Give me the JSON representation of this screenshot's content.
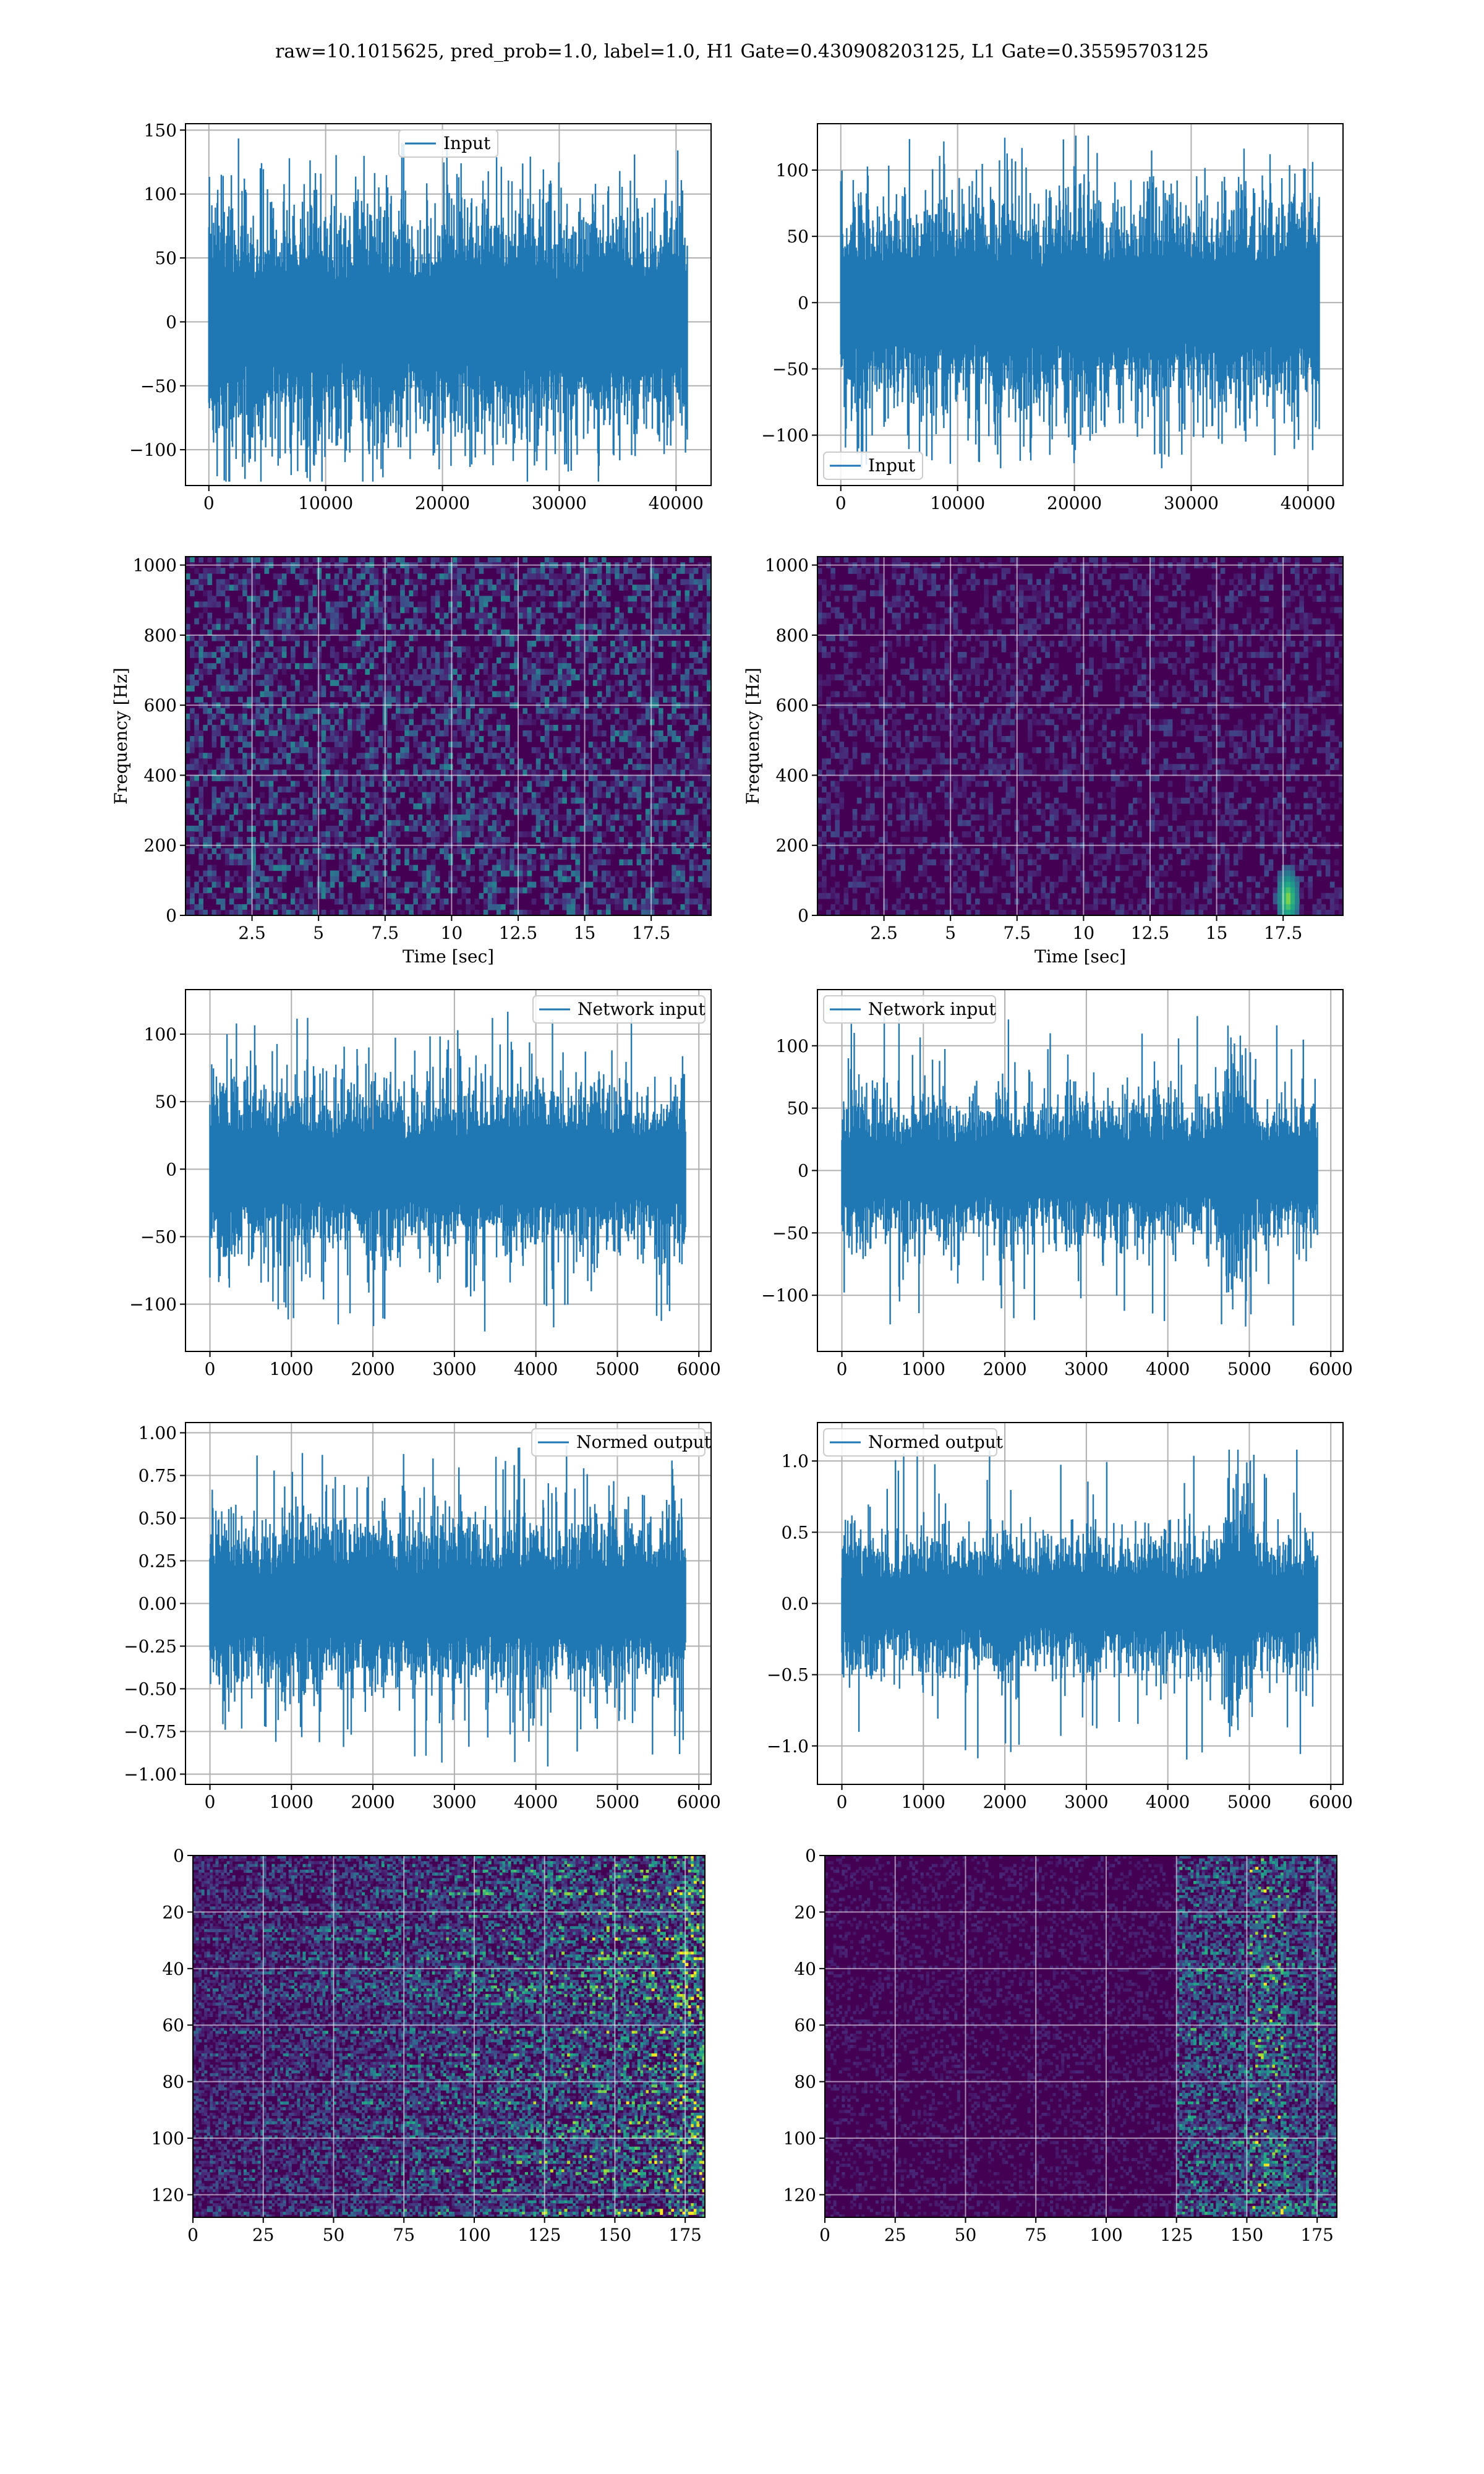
{
  "figure": {
    "title": "raw=10.1015625, pred_prob=1.0, label=1.0, H1 Gate=0.430908203125, L1 Gate=0.35595703125"
  },
  "colors": {
    "line": "#1f77b4",
    "grid": "#b0b0b0",
    "viridis_dark": "#440154",
    "viridis_mid": "#21918c",
    "viridis_light": "#fde725"
  },
  "chart_data": [
    {
      "id": "h1-input",
      "type": "line",
      "series": [
        {
          "name": "Input",
          "stats": {
            "n": 40960,
            "min": -125,
            "max": 146,
            "typical_range": [
              -80,
              80
            ]
          }
        }
      ],
      "xlim": [
        -2000,
        43000
      ],
      "ylim": [
        -128,
        155
      ],
      "xticks": [
        0,
        10000,
        20000,
        30000,
        40000
      ],
      "yticks": [
        -100,
        -50,
        0,
        50,
        100,
        150
      ],
      "legend": "upper center",
      "grid": true
    },
    {
      "id": "l1-input",
      "type": "line",
      "series": [
        {
          "name": "Input",
          "stats": {
            "n": 40960,
            "min": -125,
            "max": 126,
            "typical_range": [
              -70,
              70
            ]
          }
        }
      ],
      "xlim": [
        -2000,
        43000
      ],
      "ylim": [
        -138,
        135
      ],
      "xticks": [
        0,
        10000,
        20000,
        30000,
        40000
      ],
      "yticks": [
        -100,
        -50,
        0,
        50,
        100
      ],
      "legend": "lower left",
      "grid": true
    },
    {
      "id": "h1-spectrogram",
      "type": "heatmap",
      "xlabel": "Time [sec]",
      "ylabel": "Frequency [Hz]",
      "xlim": [
        0,
        19.75
      ],
      "ylim": [
        0,
        1024
      ],
      "xticks": [
        2.5,
        5.0,
        7.5,
        10.0,
        12.5,
        15.0,
        17.5
      ],
      "yticks": [
        0,
        200,
        400,
        600,
        800,
        1000
      ],
      "grid": true,
      "colormap": "viridis"
    },
    {
      "id": "l1-spectrogram",
      "type": "heatmap",
      "xlabel": "Time [sec]",
      "ylabel": "Frequency [Hz]",
      "xlim": [
        0,
        19.75
      ],
      "ylim": [
        0,
        1024
      ],
      "xticks": [
        2.5,
        5.0,
        7.5,
        10.0,
        12.5,
        15.0,
        17.5
      ],
      "yticks": [
        0,
        200,
        400,
        600,
        800,
        1000
      ],
      "grid": true,
      "colormap": "viridis",
      "hotspots": [
        {
          "t": 17.6,
          "f": 40
        }
      ]
    },
    {
      "id": "h1-network-input",
      "type": "line",
      "series": [
        {
          "name": "Network input",
          "stats": {
            "n": 5836,
            "min": -122,
            "max": 120,
            "typical_range": [
              -55,
              55
            ]
          }
        }
      ],
      "xlim": [
        -300,
        6150
      ],
      "ylim": [
        -135,
        133
      ],
      "xticks": [
        0,
        1000,
        2000,
        3000,
        4000,
        5000,
        6000
      ],
      "yticks": [
        -100,
        -50,
        0,
        50,
        100
      ],
      "legend": "upper right",
      "grid": true
    },
    {
      "id": "l1-network-input",
      "type": "line",
      "series": [
        {
          "name": "Network input",
          "stats": {
            "n": 5836,
            "min": -125,
            "max": 126,
            "typical_range": [
              -50,
              50
            ]
          }
        }
      ],
      "xlim": [
        -300,
        6150
      ],
      "ylim": [
        -145,
        145
      ],
      "xticks": [
        0,
        1000,
        2000,
        3000,
        4000,
        5000,
        6000
      ],
      "yticks": [
        -100,
        -50,
        0,
        50,
        100
      ],
      "legend": "upper left",
      "grid": true,
      "event": {
        "x": 4850,
        "span": 300
      }
    },
    {
      "id": "h1-normed-output",
      "type": "line",
      "series": [
        {
          "name": "Normed output",
          "stats": {
            "n": 5836,
            "min": -0.97,
            "max": 0.95,
            "typical_range": [
              -0.45,
              0.45
            ]
          }
        }
      ],
      "xlim": [
        -300,
        6150
      ],
      "ylim": [
        -1.06,
        1.06
      ],
      "xticks": [
        0,
        1000,
        2000,
        3000,
        4000,
        5000,
        6000
      ],
      "yticks": [
        -1.0,
        -0.75,
        -0.5,
        -0.25,
        0.0,
        0.25,
        0.5,
        0.75,
        1.0
      ],
      "ytick_labels": [
        "−1.00",
        "−0.75",
        "−0.50",
        "−0.25",
        "0.00",
        "0.25",
        "0.50",
        "0.75",
        "1.00"
      ],
      "legend": "upper right",
      "grid": true
    },
    {
      "id": "l1-normed-output",
      "type": "line",
      "series": [
        {
          "name": "Normed output",
          "stats": {
            "n": 5836,
            "min": -1.1,
            "max": 1.08,
            "typical_range": [
              -0.42,
              0.42
            ]
          }
        }
      ],
      "xlim": [
        -300,
        6150
      ],
      "ylim": [
        -1.27,
        1.27
      ],
      "xticks": [
        0,
        1000,
        2000,
        3000,
        4000,
        5000,
        6000
      ],
      "yticks": [
        -1.0,
        -0.5,
        0.0,
        0.5,
        1.0
      ],
      "ytick_labels": [
        "−1.0",
        "−0.5",
        "0.0",
        "0.5",
        "1.0"
      ],
      "legend": "upper left",
      "grid": true,
      "event": {
        "x": 4850,
        "span": 300
      }
    },
    {
      "id": "h1-feature-map",
      "type": "heatmap",
      "xlim": [
        0,
        182
      ],
      "ylim": [
        128,
        0
      ],
      "xticks": [
        0,
        25,
        50,
        75,
        100,
        125,
        150,
        175
      ],
      "yticks": [
        0,
        20,
        40,
        60,
        80,
        100,
        120
      ],
      "grid": true,
      "colormap": "viridis"
    },
    {
      "id": "l1-feature-map",
      "type": "heatmap",
      "xlim": [
        0,
        182
      ],
      "ylim": [
        128,
        0
      ],
      "xticks": [
        0,
        25,
        50,
        75,
        100,
        125,
        150,
        175
      ],
      "yticks": [
        0,
        20,
        40,
        60,
        80,
        100,
        120
      ],
      "grid": true,
      "colormap": "viridis",
      "active_band": [
        125,
        182
      ]
    }
  ]
}
